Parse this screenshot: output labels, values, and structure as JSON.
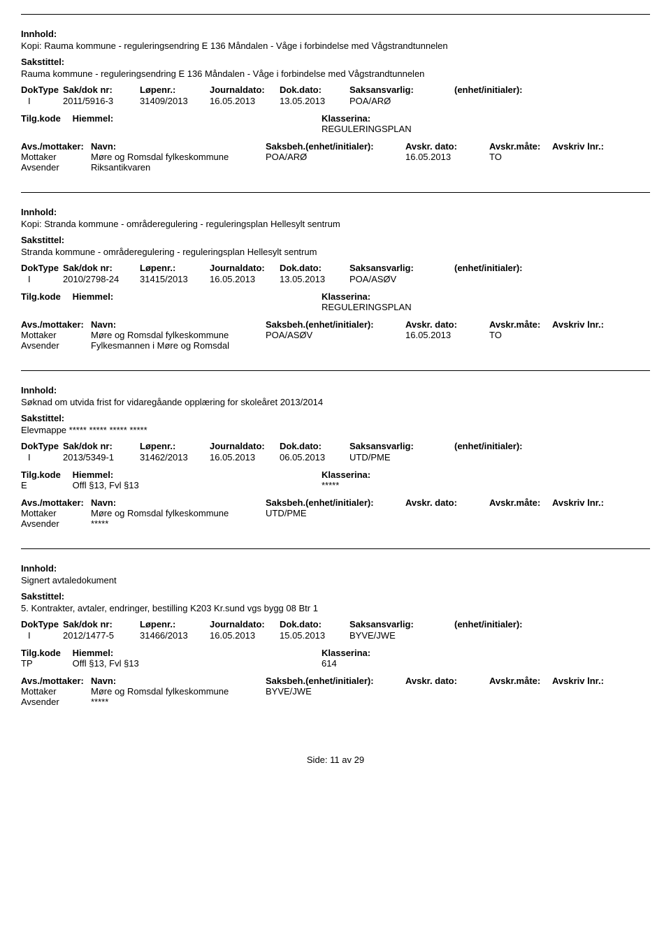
{
  "labels": {
    "innhold": "Innhold:",
    "sakstittel": "Sakstittel:",
    "doktype": "DokType",
    "sakdoknr": "Sak/dok nr:",
    "lopenr": "Løpenr.:",
    "journaldato": "Journaldato:",
    "dokdato": "Dok.dato:",
    "saksansvarlig": "Saksansvarlig:",
    "enhet_init": "(enhet/initialer):",
    "tilgkode": "Tilg.kode",
    "hjemmel": "Hiemmel:",
    "klassering": "Klasserina:",
    "avs_mottaker": "Avs./mottaker:",
    "navn": "Navn:",
    "saksbeh": "Saksbeh.(enhet/initialer):",
    "avskr_dato": "Avskr. dato:",
    "avskr_mate": "Avskr.måte:",
    "avskriv_lnr": "Avskriv lnr.:",
    "mottaker": "Mottaker",
    "avsender": "Avsender",
    "side": "Side:",
    "av": "av"
  },
  "footer": {
    "page": "11",
    "total": "29"
  },
  "records": [
    {
      "innhold": "Kopi: Rauma kommune - reguleringsendring E 136 Måndalen - Våge i forbindelse med Vågstrandtunnelen",
      "sakstittel": "Rauma kommune - reguleringsendring E 136 Måndalen - Våge i forbindelse med Vågstrandtunnelen",
      "doktype": "I",
      "sakdoknr": "2011/5916-3",
      "lopenr": "31409/2013",
      "journaldato": "16.05.2013",
      "dokdato": "13.05.2013",
      "saksansvarlig": "POA/ARØ",
      "tilgkode": "",
      "hjemmel": "",
      "klassering": "REGULERINGSPLAN",
      "mottaker_navn": "Møre og Romsdal fylkeskommune",
      "saksbeh": "POA/ARØ",
      "avskr_dato": "16.05.2013",
      "avskr_mate": "TO",
      "avsender_navn": "Riksantikvaren"
    },
    {
      "innhold": "Kopi: Stranda kommune - områderegulering - reguleringsplan Hellesylt sentrum",
      "sakstittel": "Stranda kommune - områderegulering - reguleringsplan Hellesylt sentrum",
      "doktype": "I",
      "sakdoknr": "2010/2798-24",
      "lopenr": "31415/2013",
      "journaldato": "16.05.2013",
      "dokdato": "13.05.2013",
      "saksansvarlig": "POA/ASØV",
      "tilgkode": "",
      "hjemmel": "",
      "klassering": "REGULERINGSPLAN",
      "mottaker_navn": "Møre og Romsdal fylkeskommune",
      "saksbeh": "POA/ASØV",
      "avskr_dato": "16.05.2013",
      "avskr_mate": "TO",
      "avsender_navn": "Fylkesmannen i Møre og Romsdal"
    },
    {
      "innhold": "Søknad om utvida frist for vidaregåande opplæring for skoleåret 2013/2014",
      "sakstittel": "Elevmappe ***** ***** ***** *****",
      "doktype": "I",
      "sakdoknr": "2013/5349-1",
      "lopenr": "31462/2013",
      "journaldato": "16.05.2013",
      "dokdato": "06.05.2013",
      "saksansvarlig": "UTD/PME",
      "tilgkode": "E",
      "hjemmel": "Offl §13, Fvl §13",
      "klassering": "*****",
      "mottaker_navn": "Møre og Romsdal fylkeskommune",
      "saksbeh": "UTD/PME",
      "avskr_dato": "",
      "avskr_mate": "",
      "avsender_navn": "*****"
    },
    {
      "innhold": "Signert avtaledokument",
      "sakstittel": "5. Kontrakter, avtaler, endringer, bestilling K203 Kr.sund vgs bygg 08 Btr 1",
      "doktype": "I",
      "sakdoknr": "2012/1477-5",
      "lopenr": "31466/2013",
      "journaldato": "16.05.2013",
      "dokdato": "15.05.2013",
      "saksansvarlig": "BYVE/JWE",
      "tilgkode": "TP",
      "hjemmel": "Offl §13, Fvl §13",
      "klassering": "614",
      "mottaker_navn": "Møre og Romsdal fylkeskommune",
      "saksbeh": "BYVE/JWE",
      "avskr_dato": "",
      "avskr_mate": "",
      "avsender_navn": "*****"
    }
  ]
}
